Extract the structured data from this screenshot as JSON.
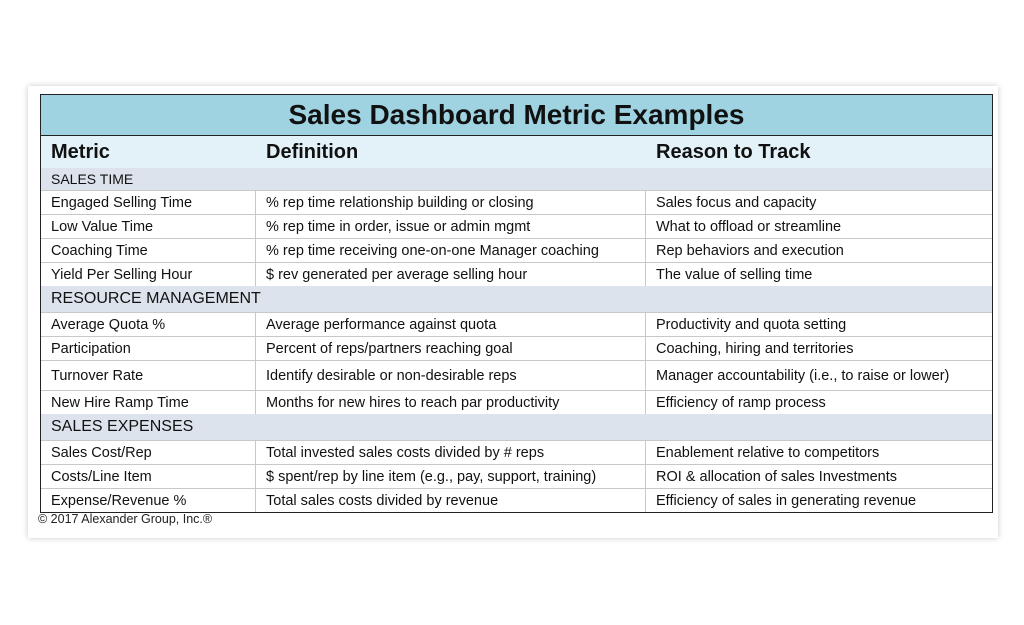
{
  "title": "Sales Dashboard Metric Examples",
  "headers": {
    "metric": "Metric",
    "definition": "Definition",
    "reason": "Reason to Track"
  },
  "sections": [
    {
      "label": "SALES TIME",
      "rows": [
        [
          "Engaged Selling Time",
          "% rep time relationship building or closing",
          "Sales focus and capacity"
        ],
        [
          "Low Value Time",
          "% rep time in order, issue or admin mgmt",
          "What to offload or streamline"
        ],
        [
          "Coaching Time",
          "% rep time receiving one-on-one Manager coaching",
          "Rep behaviors and execution"
        ],
        [
          "Yield Per Selling Hour",
          "$ rev generated per average selling hour",
          "The value of selling time"
        ]
      ]
    },
    {
      "label": "RESOURCE MANAGEMENT",
      "rows": [
        [
          "Average Quota %",
          "Average performance against quota",
          "Productivity and quota setting"
        ],
        [
          "Participation",
          "Percent of reps/partners reaching goal",
          "Coaching, hiring and territories"
        ],
        [
          "Turnover Rate",
          "Identify desirable or non-desirable reps",
          "Manager accountability (i.e., to raise or lower)"
        ],
        [
          "New Hire Ramp Time",
          "Months for new hires to reach par productivity",
          "Efficiency of ramp process"
        ]
      ]
    },
    {
      "label": "SALES EXPENSES",
      "rows": [
        [
          "Sales Cost/Rep",
          "Total invested sales costs divided by # reps",
          "Enablement relative to competitors"
        ],
        [
          "Costs/Line Item",
          "$ spent/rep by line item (e.g., pay, support, training)",
          "ROI & allocation of sales Investments"
        ],
        [
          "Expense/Revenue %",
          "Total sales costs divided by revenue",
          "Efficiency of sales in generating revenue"
        ]
      ]
    }
  ],
  "copyright": "© 2017 Alexander Group, Inc.®",
  "colors": {
    "title_bg": "#9fd3e2",
    "header_bg": "#e2f2f8",
    "section_bg": "#dde3ec"
  }
}
